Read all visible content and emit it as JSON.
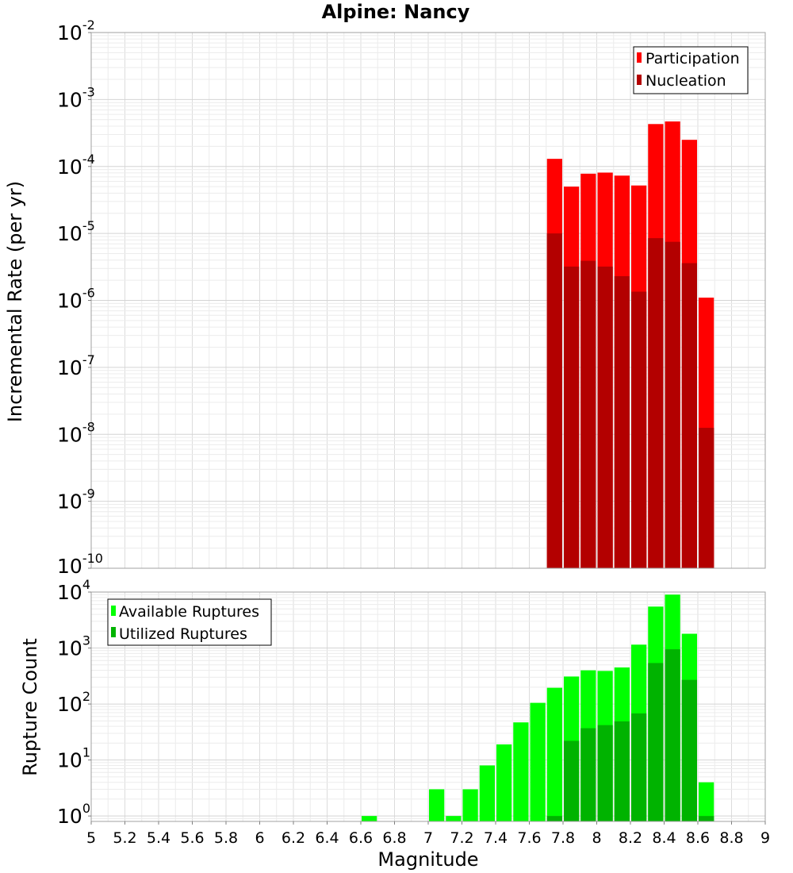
{
  "chart_data": [
    {
      "type": "bar",
      "title": "Alpine: Nancy",
      "xlabel": "",
      "ylabel": "Incremental Rate (per yr)",
      "yscale": "log",
      "ylim": [
        1e-10,
        0.01
      ],
      "xlim": [
        5,
        9
      ],
      "bin_width": 0.1,
      "y_ticks": [
        {
          "base": "10",
          "exp": "-2",
          "value": 0.01
        },
        {
          "base": "10",
          "exp": "-3",
          "value": 0.001
        },
        {
          "base": "10",
          "exp": "-4",
          "value": 0.0001
        },
        {
          "base": "10",
          "exp": "-5",
          "value": 1e-05
        },
        {
          "base": "10",
          "exp": "-6",
          "value": 1e-06
        },
        {
          "base": "10",
          "exp": "-7",
          "value": 1e-07
        },
        {
          "base": "10",
          "exp": "-8",
          "value": 1e-08
        },
        {
          "base": "10",
          "exp": "-9",
          "value": 1e-09
        },
        {
          "base": "10",
          "exp": "-10",
          "value": 1e-10
        }
      ],
      "legend": [
        "Participation",
        "Nucleation"
      ],
      "legend_position": "top-right",
      "series": [
        {
          "name": "Participation",
          "color": "#ff0000",
          "x": [
            7.75,
            7.85,
            7.95,
            8.05,
            8.15,
            8.25,
            8.35,
            8.45,
            8.55,
            8.65
          ],
          "values": [
            0.00013,
            5e-05,
            7.8e-05,
            8.1e-05,
            7.3e-05,
            5.2e-05,
            0.00043,
            0.00047,
            0.00025,
            1.1e-06
          ]
        },
        {
          "name": "Nucleation",
          "color": "#b30000",
          "x": [
            7.75,
            7.85,
            7.95,
            8.05,
            8.15,
            8.25,
            8.35,
            8.45,
            8.55,
            8.65
          ],
          "values": [
            1e-05,
            3.2e-06,
            3.9e-06,
            3.2e-06,
            2.3e-06,
            1.35e-06,
            8.5e-06,
            7.5e-06,
            3.6e-06,
            1.25e-08
          ]
        }
      ]
    },
    {
      "type": "bar",
      "title": "",
      "xlabel": "Magnitude",
      "ylabel": "Rupture Count",
      "yscale": "log",
      "ylim": [
        0.8,
        10000
      ],
      "xlim": [
        5,
        9
      ],
      "bin_width": 0.1,
      "x_ticks": [
        "5",
        "5.2",
        "5.4",
        "5.6",
        "5.8",
        "6",
        "6.2",
        "6.4",
        "6.6",
        "6.8",
        "7",
        "7.2",
        "7.4",
        "7.6",
        "7.8",
        "8",
        "8.2",
        "8.4",
        "8.6",
        "8.8",
        "9"
      ],
      "y_ticks": [
        {
          "base": "10",
          "exp": "4",
          "value": 10000
        },
        {
          "base": "10",
          "exp": "3",
          "value": 1000
        },
        {
          "base": "10",
          "exp": "2",
          "value": 100
        },
        {
          "base": "10",
          "exp": "1",
          "value": 10
        },
        {
          "base": "10",
          "exp": "0",
          "value": 1
        }
      ],
      "legend": [
        "Available Ruptures",
        "Utilized Ruptures"
      ],
      "legend_position": "top-left",
      "series": [
        {
          "name": "Available Ruptures",
          "color": "#00ff00",
          "x": [
            6.65,
            7.05,
            7.15,
            7.25,
            7.35,
            7.45,
            7.55,
            7.65,
            7.75,
            7.85,
            7.95,
            8.05,
            8.15,
            8.25,
            8.35,
            8.45,
            8.55,
            8.65
          ],
          "values": [
            1,
            3,
            1,
            3,
            8,
            19,
            47,
            105,
            195,
            310,
            400,
            390,
            450,
            1150,
            5500,
            9000,
            1800,
            4
          ]
        },
        {
          "name": "Utilized Ruptures",
          "color": "#00b300",
          "x": [
            7.75,
            7.85,
            7.95,
            8.05,
            8.15,
            8.25,
            8.35,
            8.45,
            8.55,
            8.65
          ],
          "values": [
            1,
            22,
            37,
            42,
            49,
            68,
            540,
            950,
            270,
            1
          ]
        }
      ]
    }
  ]
}
